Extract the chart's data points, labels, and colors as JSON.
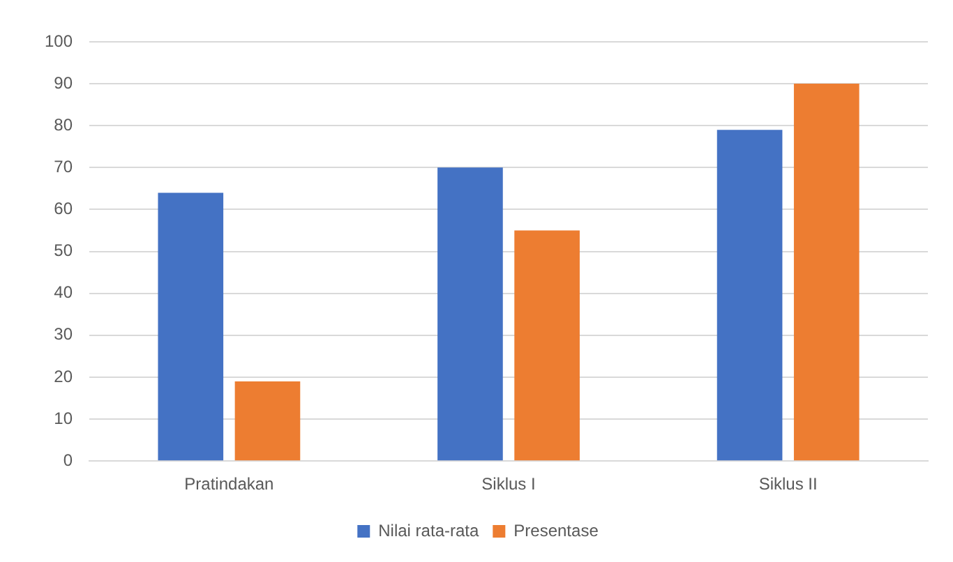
{
  "chart_data": {
    "type": "bar",
    "categories": [
      "Pratindakan",
      "Siklus I",
      "Siklus II"
    ],
    "series": [
      {
        "name": "Nilai rata-rata",
        "color": "#4472c4",
        "values": [
          64,
          70,
          79
        ]
      },
      {
        "name": "Presentase",
        "color": "#ed7d31",
        "values": [
          19,
          55,
          90
        ]
      }
    ],
    "ylim": [
      0,
      100
    ],
    "yticks": [
      0,
      10,
      20,
      30,
      40,
      50,
      60,
      70,
      80,
      90,
      100
    ],
    "grid": "y",
    "legend": "bottom"
  }
}
